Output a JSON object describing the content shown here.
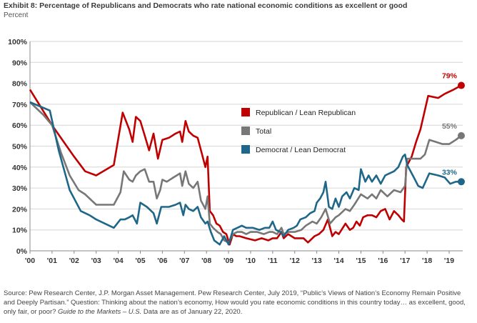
{
  "header": {
    "title": "Exhibit 8: Percentage of Republicans and Democrats who rate national economic conditions as excellent or good",
    "subtitle": "Percent"
  },
  "footer": {
    "source_main": "Source: Pew Research Center, J.P. Morgan Asset Management. Pew Research Center, July 2019, “Public’s Views of Nation’s Economy Remain Positive and Deeply Partisan.” Question: Thinking about the nation’s economy, How would you rate economic conditions in this country today… as excellent, good, only fair, or poor? ",
    "source_italic": "Guide to the Markets – U.S.",
    "source_end": " Data are as of January 22, 2020."
  },
  "chart_data": {
    "type": "line",
    "title": "Exhibit 8: Percentage of Republicans and Democrats who rate national economic conditions as excellent or good",
    "ylabel": "Percent",
    "xlim": [
      2000,
      2019.7
    ],
    "ylim": [
      0,
      100
    ],
    "yticks": [
      0,
      10,
      20,
      30,
      40,
      50,
      60,
      70,
      80,
      90,
      100
    ],
    "ytick_labels": [
      "0%",
      "10%",
      "20%",
      "30%",
      "40%",
      "50%",
      "60%",
      "70%",
      "80%",
      "90%",
      "100%"
    ],
    "xticks": [
      2000,
      2001,
      2002,
      2003,
      2004,
      2005,
      2006,
      2007,
      2008,
      2009,
      2010,
      2011,
      2012,
      2013,
      2014,
      2015,
      2016,
      2017,
      2018,
      2019
    ],
    "xtick_labels": [
      "'00",
      "'01",
      "'02",
      "'03",
      "'04",
      "'05",
      "'06",
      "'07",
      "'08",
      "'09",
      "'10",
      "'11",
      "'12",
      "'13",
      "'14",
      "'15",
      "'16",
      "'17",
      "'18",
      "'19"
    ],
    "legend_position": "center",
    "series": [
      {
        "name": "Republican / Lean Republican",
        "color": "#c00000",
        "end_label": "79%",
        "points": [
          [
            2000,
            77
          ],
          [
            2001,
            60
          ],
          [
            2002,
            45
          ],
          [
            2002.5,
            38
          ],
          [
            2003,
            36
          ],
          [
            2003.8,
            41
          ],
          [
            2004.2,
            66
          ],
          [
            2004.5,
            58
          ],
          [
            2004.65,
            52
          ],
          [
            2004.8,
            64
          ],
          [
            2005,
            62
          ],
          [
            2005.2,
            55
          ],
          [
            2005.4,
            48
          ],
          [
            2005.6,
            56
          ],
          [
            2005.8,
            44
          ],
          [
            2006,
            53
          ],
          [
            2006.3,
            54
          ],
          [
            2006.6,
            56
          ],
          [
            2006.8,
            57
          ],
          [
            2006.9,
            52
          ],
          [
            2007.05,
            62
          ],
          [
            2007.2,
            57
          ],
          [
            2007.4,
            55
          ],
          [
            2007.6,
            54
          ],
          [
            2007.8,
            46
          ],
          [
            2007.95,
            40
          ],
          [
            2008.05,
            45
          ],
          [
            2008.15,
            19
          ],
          [
            2008.3,
            17
          ],
          [
            2008.45,
            13
          ],
          [
            2008.6,
            12
          ],
          [
            2008.75,
            9
          ],
          [
            2008.9,
            8
          ],
          [
            2009.05,
            3
          ],
          [
            2009.2,
            8
          ],
          [
            2009.35,
            7
          ],
          [
            2009.5,
            7
          ],
          [
            2009.8,
            6
          ],
          [
            2010.2,
            5
          ],
          [
            2010.5,
            6
          ],
          [
            2010.8,
            5
          ],
          [
            2011,
            6
          ],
          [
            2011.2,
            6
          ],
          [
            2011.4,
            9
          ],
          [
            2011.5,
            6
          ],
          [
            2011.7,
            8
          ],
          [
            2012,
            6
          ],
          [
            2012.4,
            6
          ],
          [
            2012.6,
            4
          ],
          [
            2012.9,
            7
          ],
          [
            2013.1,
            8
          ],
          [
            2013.3,
            10
          ],
          [
            2013.5,
            15
          ],
          [
            2013.7,
            7
          ],
          [
            2013.85,
            9
          ],
          [
            2014,
            8
          ],
          [
            2014.3,
            13
          ],
          [
            2014.5,
            10
          ],
          [
            2014.65,
            11
          ],
          [
            2014.8,
            14
          ],
          [
            2014.95,
            12
          ],
          [
            2015.1,
            16
          ],
          [
            2015.3,
            17
          ],
          [
            2015.5,
            17
          ],
          [
            2015.7,
            16
          ],
          [
            2015.9,
            19
          ],
          [
            2016.1,
            20
          ],
          [
            2016.3,
            15
          ],
          [
            2016.5,
            19
          ],
          [
            2016.7,
            17
          ],
          [
            2016.85,
            15
          ],
          [
            2016.95,
            14
          ],
          [
            2017.05,
            40
          ],
          [
            2017.3,
            45
          ],
          [
            2017.5,
            52
          ],
          [
            2017.7,
            58
          ],
          [
            2018.05,
            74
          ],
          [
            2018.5,
            73
          ],
          [
            2018.8,
            75
          ],
          [
            2019.2,
            77
          ],
          [
            2019.55,
            79
          ]
        ]
      },
      {
        "name": "Total",
        "color": "#777777",
        "end_label": "55%",
        "points": [
          [
            2000,
            71
          ],
          [
            2000.6,
            65
          ],
          [
            2001,
            60
          ],
          [
            2001.4,
            47
          ],
          [
            2001.8,
            36
          ],
          [
            2002.2,
            29
          ],
          [
            2002.5,
            27
          ],
          [
            2002.8,
            24
          ],
          [
            2003,
            22
          ],
          [
            2003.4,
            22
          ],
          [
            2003.8,
            22
          ],
          [
            2004.1,
            28
          ],
          [
            2004.25,
            38
          ],
          [
            2004.5,
            34
          ],
          [
            2004.65,
            33
          ],
          [
            2004.8,
            36
          ],
          [
            2005,
            38
          ],
          [
            2005.2,
            39
          ],
          [
            2005.4,
            33
          ],
          [
            2005.6,
            33
          ],
          [
            2005.75,
            25
          ],
          [
            2005.9,
            29
          ],
          [
            2006,
            34
          ],
          [
            2006.2,
            33
          ],
          [
            2006.5,
            35
          ],
          [
            2006.8,
            37
          ],
          [
            2006.9,
            31
          ],
          [
            2007.05,
            38
          ],
          [
            2007.2,
            32
          ],
          [
            2007.4,
            30
          ],
          [
            2007.6,
            33
          ],
          [
            2007.75,
            24
          ],
          [
            2007.95,
            20
          ],
          [
            2008.05,
            26
          ],
          [
            2008.15,
            13
          ],
          [
            2008.3,
            11
          ],
          [
            2008.5,
            9
          ],
          [
            2008.65,
            8
          ],
          [
            2008.8,
            5
          ],
          [
            2009,
            4
          ],
          [
            2009.2,
            8
          ],
          [
            2009.4,
            9
          ],
          [
            2009.6,
            9
          ],
          [
            2009.8,
            8
          ],
          [
            2010,
            9
          ],
          [
            2010.3,
            9
          ],
          [
            2010.6,
            8
          ],
          [
            2010.85,
            9
          ],
          [
            2011,
            9
          ],
          [
            2011.2,
            8
          ],
          [
            2011.4,
            11
          ],
          [
            2011.5,
            8
          ],
          [
            2011.7,
            9
          ],
          [
            2012,
            9
          ],
          [
            2012.3,
            10
          ],
          [
            2012.5,
            12
          ],
          [
            2012.8,
            14
          ],
          [
            2013,
            13
          ],
          [
            2013.2,
            16
          ],
          [
            2013.4,
            20
          ],
          [
            2013.6,
            13
          ],
          [
            2013.85,
            16
          ],
          [
            2014,
            17
          ],
          [
            2014.3,
            20
          ],
          [
            2014.5,
            19
          ],
          [
            2014.7,
            22
          ],
          [
            2015,
            27
          ],
          [
            2015.3,
            25
          ],
          [
            2015.5,
            27
          ],
          [
            2015.7,
            25
          ],
          [
            2015.9,
            29
          ],
          [
            2016.2,
            26
          ],
          [
            2016.5,
            29
          ],
          [
            2016.8,
            28
          ],
          [
            2017,
            31
          ],
          [
            2017.1,
            44
          ],
          [
            2017.4,
            44
          ],
          [
            2017.7,
            44
          ],
          [
            2017.9,
            46
          ],
          [
            2018.1,
            53
          ],
          [
            2018.4,
            52
          ],
          [
            2018.7,
            51
          ],
          [
            2019,
            51
          ],
          [
            2019.3,
            53
          ],
          [
            2019.55,
            55
          ]
        ]
      },
      {
        "name": "Democrat / Lean Democrat",
        "color": "#1f6788",
        "end_label": "33%",
        "points": [
          [
            2000,
            71
          ],
          [
            2000.9,
            67
          ],
          [
            2001.3,
            48
          ],
          [
            2001.8,
            29
          ],
          [
            2002.3,
            19
          ],
          [
            2002.7,
            17
          ],
          [
            2003,
            15
          ],
          [
            2003.4,
            13
          ],
          [
            2003.8,
            11
          ],
          [
            2004.1,
            15
          ],
          [
            2004.3,
            15
          ],
          [
            2004.5,
            16
          ],
          [
            2004.65,
            17
          ],
          [
            2004.85,
            13
          ],
          [
            2005,
            23
          ],
          [
            2005.3,
            21
          ],
          [
            2005.6,
            18
          ],
          [
            2005.75,
            13
          ],
          [
            2005.95,
            21
          ],
          [
            2006.3,
            21
          ],
          [
            2006.6,
            22
          ],
          [
            2006.8,
            23
          ],
          [
            2006.95,
            17
          ],
          [
            2007.05,
            22
          ],
          [
            2007.2,
            20
          ],
          [
            2007.4,
            19
          ],
          [
            2007.6,
            21
          ],
          [
            2007.75,
            16
          ],
          [
            2007.95,
            13
          ],
          [
            2008.05,
            14
          ],
          [
            2008.2,
            9
          ],
          [
            2008.35,
            5
          ],
          [
            2008.6,
            3
          ],
          [
            2008.8,
            7
          ],
          [
            2009,
            3
          ],
          [
            2009.2,
            10
          ],
          [
            2009.4,
            11
          ],
          [
            2009.6,
            12
          ],
          [
            2009.8,
            11
          ],
          [
            2010.1,
            11
          ],
          [
            2010.4,
            10
          ],
          [
            2010.65,
            11
          ],
          [
            2010.85,
            11
          ],
          [
            2011,
            14
          ],
          [
            2011.15,
            10
          ],
          [
            2011.35,
            9
          ],
          [
            2011.5,
            7
          ],
          [
            2011.7,
            10
          ],
          [
            2011.95,
            11
          ],
          [
            2012.1,
            12
          ],
          [
            2012.25,
            15
          ],
          [
            2012.5,
            16
          ],
          [
            2012.7,
            18
          ],
          [
            2012.9,
            19
          ],
          [
            2013,
            23
          ],
          [
            2013.15,
            25
          ],
          [
            2013.3,
            28
          ],
          [
            2013.4,
            33
          ],
          [
            2013.55,
            21
          ],
          [
            2013.7,
            20
          ],
          [
            2013.85,
            25
          ],
          [
            2014,
            21
          ],
          [
            2014.15,
            26
          ],
          [
            2014.35,
            28
          ],
          [
            2014.5,
            25
          ],
          [
            2014.7,
            30
          ],
          [
            2014.9,
            29
          ],
          [
            2015,
            39
          ],
          [
            2015.2,
            33
          ],
          [
            2015.35,
            36
          ],
          [
            2015.5,
            33
          ],
          [
            2015.7,
            36
          ],
          [
            2015.9,
            32
          ],
          [
            2016.1,
            36
          ],
          [
            2016.3,
            37
          ],
          [
            2016.5,
            38
          ],
          [
            2016.7,
            40
          ],
          [
            2016.9,
            45
          ],
          [
            2017,
            46
          ],
          [
            2017.1,
            41
          ],
          [
            2017.4,
            35
          ],
          [
            2017.6,
            31
          ],
          [
            2017.8,
            30
          ],
          [
            2018.1,
            37
          ],
          [
            2018.5,
            36
          ],
          [
            2018.8,
            35
          ],
          [
            2019.05,
            32
          ],
          [
            2019.3,
            33
          ],
          [
            2019.55,
            33
          ]
        ]
      }
    ]
  }
}
